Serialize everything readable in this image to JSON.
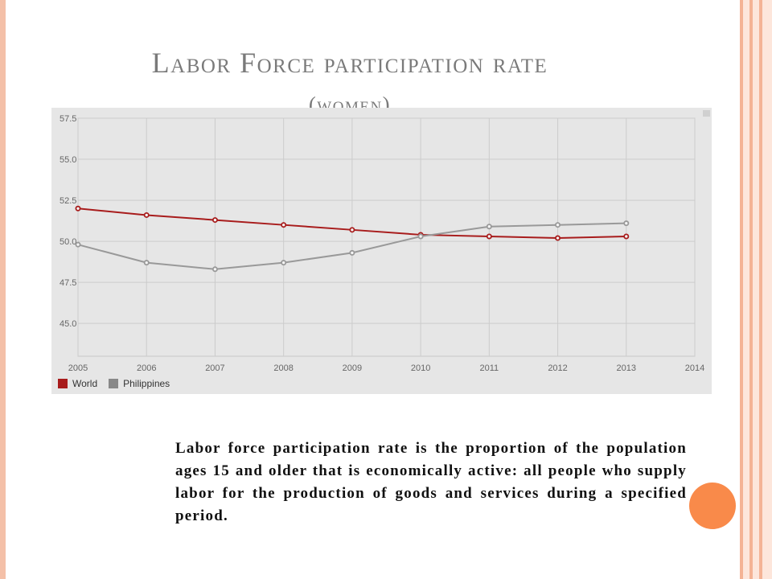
{
  "title": {
    "line1": "Labor Force participation rate",
    "line2": "(women)"
  },
  "description": "Labor force participation rate is the proportion of the population ages 15 and older that is economically active: all people who supply labor for the production of goods and services during a specified period.",
  "colors": {
    "world": "#a81c1c",
    "philippines": "#999999",
    "accent_dot": "#f98a4a"
  },
  "chart_data": {
    "type": "line",
    "x": [
      2005,
      2006,
      2007,
      2008,
      2009,
      2010,
      2011,
      2012,
      2013
    ],
    "x_ticks": [
      "2005",
      "2006",
      "2007",
      "2008",
      "2009",
      "2010",
      "2011",
      "2012",
      "2013",
      "2014"
    ],
    "y_ticks": [
      "57.5",
      "55.0",
      "52.5",
      "50.0",
      "47.5",
      "45.0"
    ],
    "xlim": [
      2005,
      2014
    ],
    "ylim": [
      43,
      57.5
    ],
    "grid": true,
    "legend_position": "bottom-left",
    "series": [
      {
        "name": "World",
        "values": [
          52.0,
          51.6,
          51.3,
          51.0,
          50.7,
          50.4,
          50.3,
          50.2,
          50.3
        ]
      },
      {
        "name": "Philippines",
        "values": [
          49.8,
          48.7,
          48.3,
          48.7,
          49.3,
          50.3,
          50.9,
          51.0,
          51.1
        ]
      }
    ]
  }
}
